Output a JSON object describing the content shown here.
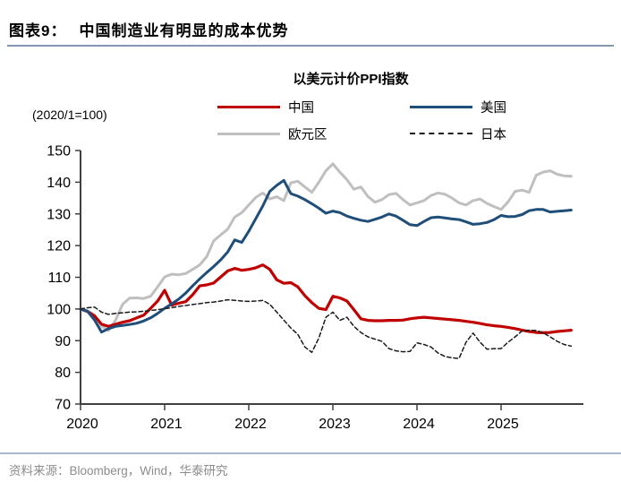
{
  "header": {
    "figure_label": "图表9：",
    "title": "中国制造业有明显的成本优势"
  },
  "footer": {
    "source": "资料来源：Bloomberg，Wind，华泰研究"
  },
  "colors": {
    "header_rule": "#8496B0",
    "footer_rule": "#A9B8CE",
    "source_text": "#8C8C8C",
    "axis": "#404040",
    "china_red": "#C00000",
    "us_blue": "#1F4E79",
    "eurozone_gray": "#BFBFBF",
    "japan_black": "#1A1A1A"
  },
  "chart_data": {
    "type": "line",
    "title": "以美元计价PPI指数",
    "axis_note": "(2020/1=100)",
    "x_start": "2020-01",
    "x_end": "2025-11",
    "x_frequency": "monthly",
    "xticks": [
      "2020",
      "2021",
      "2022",
      "2023",
      "2024",
      "2025"
    ],
    "ylim": [
      70,
      150
    ],
    "yticks": [
      70,
      80,
      90,
      100,
      110,
      120,
      130,
      140,
      150
    ],
    "grid": false,
    "legend_position": "top",
    "series": [
      {
        "id": "china",
        "name": "中国",
        "color": "#C00000",
        "style": "solid",
        "width": 3.2,
        "values": [
          100,
          99.2,
          97.8,
          95.2,
          94.5,
          95.2,
          95.8,
          96.3,
          97.2,
          98,
          100.2,
          102.5,
          105.9,
          101.2,
          101.8,
          102.3,
          104.5,
          107.3,
          107.6,
          108.2,
          110.1,
          112,
          112.8,
          112.2,
          112.5,
          113,
          113.9,
          112.5,
          109.2,
          108.1,
          108.3,
          107,
          104.2,
          102,
          100.2,
          99.8,
          104,
          103.5,
          102.5,
          99.8,
          96.9,
          96.4,
          96.3,
          96.3,
          96.4,
          96.4,
          96.5,
          96.9,
          97.2,
          97.4,
          97.2,
          97,
          96.8,
          96.6,
          96.4,
          96.1,
          95.8,
          95.4,
          95,
          94.7,
          94.5,
          94.2,
          93.8,
          93.3,
          92.9,
          92.6,
          92.5,
          92.6,
          92.9,
          93.1,
          93.3
        ]
      },
      {
        "id": "us",
        "name": "美国",
        "color": "#1F4E79",
        "style": "solid",
        "width": 3,
        "values": [
          100,
          99.3,
          96.5,
          92.7,
          93.8,
          94.5,
          94.8,
          95.1,
          95.5,
          96.2,
          97.2,
          98.6,
          100.2,
          101.6,
          103.1,
          105,
          107.3,
          109.5,
          111.5,
          113.4,
          115.5,
          118,
          121.8,
          121,
          124.5,
          128.5,
          132.5,
          137.1,
          139,
          140.6,
          136.4,
          135.6,
          134.5,
          133.2,
          131.8,
          130.2,
          130.9,
          130.4,
          129.3,
          128.6,
          128,
          127.6,
          128.3,
          129,
          130,
          129.3,
          128,
          126.6,
          126.3,
          127.6,
          128.8,
          129,
          128.7,
          128.4,
          128.2,
          127.5,
          126.7,
          126.9,
          127.3,
          128.2,
          129.5,
          129.1,
          129.2,
          129.8,
          131,
          131.4,
          131.4,
          130.6,
          130.8,
          131,
          131.2
        ]
      },
      {
        "id": "eurozone",
        "name": "欧元区",
        "color": "#BFBFBF",
        "style": "solid",
        "width": 3,
        "values": [
          100,
          99.5,
          98,
          94.5,
          93.2,
          96.5,
          101.5,
          103.4,
          103.5,
          103.3,
          104,
          107,
          110.1,
          111,
          110.8,
          111.2,
          112.5,
          113.9,
          116.5,
          121.5,
          123.4,
          125.2,
          129,
          130.4,
          132.8,
          135.2,
          136.6,
          134.7,
          135.4,
          134.2,
          139.8,
          140.3,
          138.5,
          136.8,
          140,
          143.6,
          145.8,
          143.2,
          140.8,
          137.8,
          138.5,
          135.5,
          133.7,
          134.5,
          136.1,
          136.5,
          134.5,
          132.8,
          133.5,
          134.2,
          135.8,
          136.6,
          136.2,
          135,
          133.5,
          132.8,
          134.2,
          134.7,
          133.3,
          132.3,
          131.4,
          133.8,
          137.1,
          137.5,
          136.8,
          142.2,
          143.2,
          143.6,
          142.5,
          142,
          141.9
        ]
      },
      {
        "id": "japan",
        "name": "日本",
        "color": "#1A1A1A",
        "style": "dashed",
        "width": 1.5,
        "values": [
          100,
          100.4,
          100.6,
          99,
          98.3,
          98.6,
          98.8,
          99,
          99.1,
          99.3,
          99.5,
          99.8,
          100.1,
          100.4,
          100.8,
          101.1,
          101.4,
          101.7,
          102,
          102.2,
          102.5,
          102.9,
          102.7,
          102.5,
          102.4,
          102.5,
          102.7,
          101.5,
          99,
          96.5,
          94,
          92,
          88,
          86.3,
          90.8,
          97.4,
          99,
          96.4,
          97.4,
          94.5,
          92.6,
          91.2,
          90.5,
          89.8,
          87.5,
          86.8,
          86.5,
          86.6,
          89.3,
          88.8,
          88,
          86.1,
          85,
          84.6,
          84.4,
          89.5,
          92.4,
          89.5,
          87.3,
          87.5,
          87.5,
          89.5,
          91.2,
          93.1,
          93.3,
          93.2,
          92.5,
          91.2,
          89.8,
          88.8,
          88.3
        ]
      }
    ]
  }
}
